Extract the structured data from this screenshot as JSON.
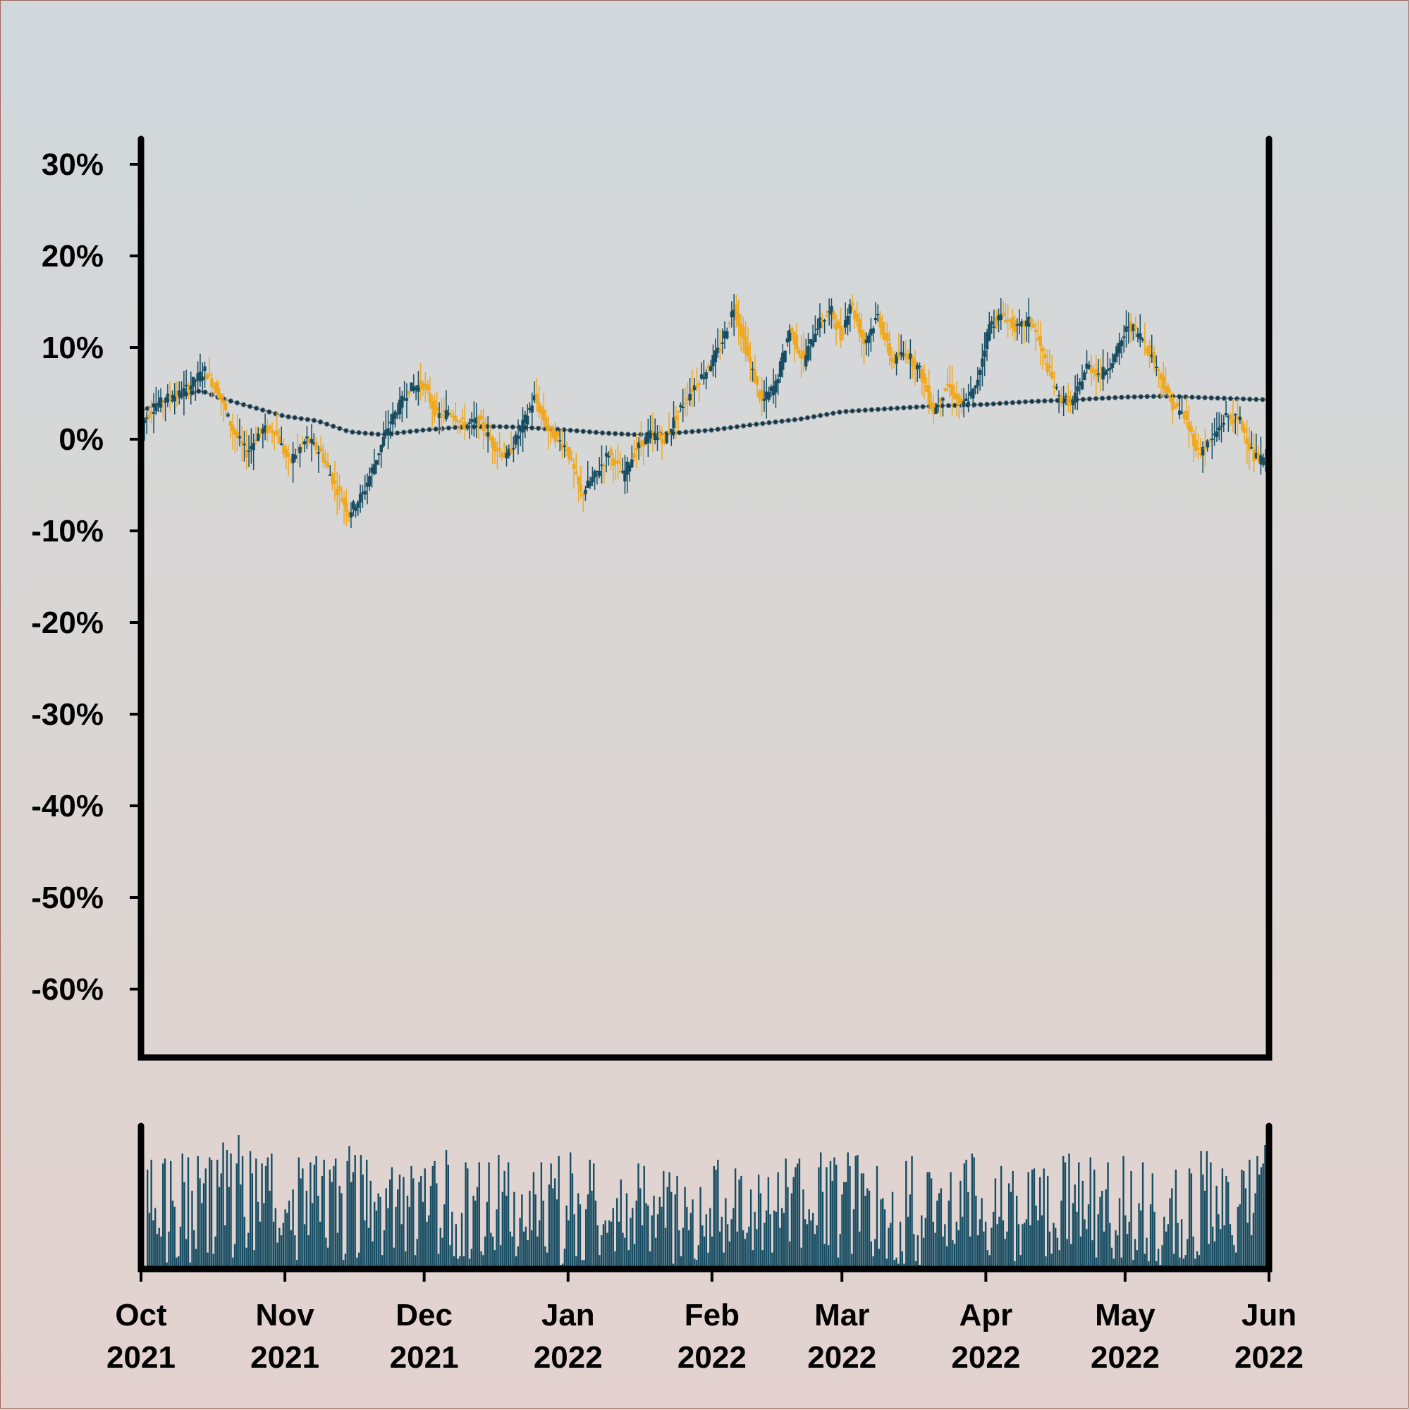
{
  "colors": {
    "up": "#174d63",
    "down": "#f0a81e",
    "ma": "#1b3442",
    "volume": "#174d63",
    "axis": "#000000"
  },
  "chart_data": {
    "type": "candlestick",
    "title": "",
    "xlabel": "",
    "ylabel": "",
    "y_unit": "percent",
    "ylim": [
      -66,
      32
    ],
    "yticks": [
      30,
      20,
      10,
      0,
      -10,
      -20,
      -30,
      -40,
      -50,
      -60
    ],
    "ytick_labels": [
      "30%",
      "20%",
      "10%",
      "0%",
      "-10%",
      "-20%",
      "-30%",
      "-40%",
      "-50%",
      "-60%"
    ],
    "x_range": [
      "2021-10-01",
      "2022-06-01"
    ],
    "xticks": [
      {
        "date": "2021-10-01",
        "month": "Oct",
        "year": "2021"
      },
      {
        "date": "2021-11-01",
        "month": "Nov",
        "year": "2021"
      },
      {
        "date": "2021-12-01",
        "month": "Dec",
        "year": "2021"
      },
      {
        "date": "2022-01-01",
        "month": "Jan",
        "year": "2022"
      },
      {
        "date": "2022-02-01",
        "month": "Feb",
        "year": "2022"
      },
      {
        "date": "2022-03-01",
        "month": "Mar",
        "year": "2022"
      },
      {
        "date": "2022-04-01",
        "month": "Apr",
        "year": "2022"
      },
      {
        "date": "2022-05-01",
        "month": "May",
        "year": "2022"
      },
      {
        "date": "2022-06-01",
        "month": "Jun",
        "year": "2022"
      }
    ],
    "price_anchors": [
      [
        "2021-10-01",
        1.5
      ],
      [
        "2021-10-04",
        3.5
      ],
      [
        "2021-10-07",
        4.5
      ],
      [
        "2021-10-10",
        5.0
      ],
      [
        "2021-10-12",
        6.0
      ],
      [
        "2021-10-15",
        7.5
      ],
      [
        "2021-10-18",
        5.0
      ],
      [
        "2021-10-21",
        1.0
      ],
      [
        "2021-10-24",
        -1.5
      ],
      [
        "2021-10-27",
        1.0
      ],
      [
        "2021-10-30",
        1.0
      ],
      [
        "2021-11-02",
        -2.5
      ],
      [
        "2021-11-06",
        0.0
      ],
      [
        "2021-11-09",
        -1.5
      ],
      [
        "2021-11-12",
        -5.0
      ],
      [
        "2021-11-15",
        -8.0
      ],
      [
        "2021-11-18",
        -6.0
      ],
      [
        "2021-11-21",
        -2.0
      ],
      [
        "2021-11-24",
        2.0
      ],
      [
        "2021-11-28",
        5.5
      ],
      [
        "2021-12-01",
        6.0
      ],
      [
        "2021-12-04",
        2.5
      ],
      [
        "2021-12-07",
        3.0
      ],
      [
        "2021-12-10",
        1.5
      ],
      [
        "2021-12-13",
        2.0
      ],
      [
        "2021-12-16",
        -0.5
      ],
      [
        "2021-12-19",
        -2.0
      ],
      [
        "2021-12-22",
        1.0
      ],
      [
        "2021-12-25",
        4.5
      ],
      [
        "2021-12-28",
        1.0
      ],
      [
        "2022-01-01",
        -1.0
      ],
      [
        "2022-01-04",
        -6.0
      ],
      [
        "2022-01-07",
        -4.0
      ],
      [
        "2022-01-10",
        -1.5
      ],
      [
        "2022-01-13",
        -4.0
      ],
      [
        "2022-01-16",
        -1.0
      ],
      [
        "2022-01-19",
        0.5
      ],
      [
        "2022-01-22",
        0.0
      ],
      [
        "2022-01-25",
        3.0
      ],
      [
        "2022-01-28",
        5.5
      ],
      [
        "2022-01-31",
        7.5
      ],
      [
        "2022-02-03",
        10.0
      ],
      [
        "2022-02-06",
        14.5
      ],
      [
        "2022-02-09",
        9.0
      ],
      [
        "2022-02-12",
        4.0
      ],
      [
        "2022-02-15",
        6.0
      ],
      [
        "2022-02-18",
        12.0
      ],
      [
        "2022-02-21",
        8.5
      ],
      [
        "2022-02-24",
        12.5
      ],
      [
        "2022-02-27",
        14.0
      ],
      [
        "2022-03-01",
        11.0
      ],
      [
        "2022-03-03",
        15.0
      ],
      [
        "2022-03-06",
        10.5
      ],
      [
        "2022-03-09",
        13.5
      ],
      [
        "2022-03-12",
        8.5
      ],
      [
        "2022-03-15",
        9.5
      ],
      [
        "2022-03-18",
        7.5
      ],
      [
        "2022-03-21",
        3.0
      ],
      [
        "2022-03-24",
        6.0
      ],
      [
        "2022-03-27",
        3.5
      ],
      [
        "2022-03-30",
        5.5
      ],
      [
        "2022-04-02",
        12.5
      ],
      [
        "2022-04-05",
        13.5
      ],
      [
        "2022-04-08",
        12.0
      ],
      [
        "2022-04-11",
        13.0
      ],
      [
        "2022-04-14",
        8.5
      ],
      [
        "2022-04-17",
        4.5
      ],
      [
        "2022-04-20",
        4.0
      ],
      [
        "2022-04-23",
        8.0
      ],
      [
        "2022-04-26",
        7.0
      ],
      [
        "2022-04-29",
        9.0
      ],
      [
        "2022-05-02",
        12.5
      ],
      [
        "2022-05-05",
        11.0
      ],
      [
        "2022-05-08",
        8.0
      ],
      [
        "2022-05-11",
        4.0
      ],
      [
        "2022-05-14",
        2.5
      ],
      [
        "2022-05-17",
        -1.5
      ],
      [
        "2022-05-20",
        0.0
      ],
      [
        "2022-05-23",
        2.5
      ],
      [
        "2022-05-26",
        2.0
      ],
      [
        "2022-05-29",
        -2.0
      ],
      [
        "2022-06-01",
        -2.5
      ]
    ],
    "moving_average": [
      [
        "2021-10-01",
        3.0
      ],
      [
        "2021-10-07",
        4.5
      ],
      [
        "2021-10-14",
        5.3
      ],
      [
        "2021-10-18",
        4.5
      ],
      [
        "2021-10-25",
        3.5
      ],
      [
        "2021-11-01",
        2.5
      ],
      [
        "2021-11-08",
        2.0
      ],
      [
        "2021-11-15",
        0.8
      ],
      [
        "2021-11-22",
        0.5
      ],
      [
        "2021-12-01",
        1.0
      ],
      [
        "2021-12-08",
        1.3
      ],
      [
        "2021-12-15",
        1.4
      ],
      [
        "2021-12-22",
        1.3
      ],
      [
        "2022-01-01",
        1.0
      ],
      [
        "2022-01-08",
        0.7
      ],
      [
        "2022-01-15",
        0.5
      ],
      [
        "2022-01-22",
        0.6
      ],
      [
        "2022-02-01",
        1.0
      ],
      [
        "2022-02-10",
        1.6
      ],
      [
        "2022-02-20",
        2.2
      ],
      [
        "2022-03-01",
        3.0
      ],
      [
        "2022-03-10",
        3.3
      ],
      [
        "2022-03-20",
        3.6
      ],
      [
        "2022-04-01",
        3.8
      ],
      [
        "2022-04-10",
        4.1
      ],
      [
        "2022-04-20",
        4.3
      ],
      [
        "2022-05-01",
        4.6
      ],
      [
        "2022-05-10",
        4.7
      ],
      [
        "2022-05-20",
        4.5
      ],
      [
        "2022-06-01",
        4.3
      ]
    ],
    "volume": {
      "unit": "relative (0-1)",
      "values": [
        0.78,
        0.43,
        0.86,
        0.37,
        0.47,
        0.26,
        0.31,
        0.24,
        0.83,
        0.87,
        0.03,
        0.28,
        0.85,
        0.53,
        0.48,
        0.07,
        0.08,
        0.32,
        0.91,
        0.68,
        0.22,
        0.88,
        0.03,
        0.61,
        0.29,
        0.14,
        0.89,
        0.71,
        0.51,
        0.67,
        0.79,
        0.11,
        0.88,
        0.86,
        0.1,
        0.24,
        0.86,
        0.64,
        0.75,
        1.0,
        0.33,
        0.94,
        0.64,
        0.91,
        0.07,
        0.18,
        0.83,
        1.06,
        0.66,
        0.89,
        0.4,
        0.15,
        0.27,
        0.93,
        0.75,
        0.13,
        0.87,
        0.52,
        0.36,
        0.83,
        0.51,
        0.81,
        0.88,
        0.61,
        0.91,
        0.36,
        0.47,
        0.19,
        0.31,
        0.25,
        0.35,
        0.46,
        0.43,
        0.53,
        0.29,
        0.62,
        0.25,
        0.05,
        0.88,
        0.71,
        0.79,
        0.34,
        0.61,
        0.25,
        0.84,
        0.51,
        0.82,
        0.89,
        0.57,
        0.36,
        0.73,
        0.86,
        0.23,
        0.15,
        0.78,
        0.68,
        0.81,
        0.87,
        0.27,
        0.65,
        0.59,
        0.05,
        0.1,
        0.85,
        0.97,
        0.68,
        0.76,
        0.9,
        0.07,
        0.11,
        0.9,
        0.74,
        0.37,
        0.86,
        0.31,
        0.69,
        0.2,
        0.52,
        0.45,
        0.59,
        0.56,
        0.09,
        0.29,
        0.63,
        0.47,
        0.7,
        0.8,
        0.15,
        0.48,
        0.62,
        0.74,
        0.34,
        0.72,
        0.12,
        0.57,
        0.48,
        0.81,
        0.71,
        0.09,
        0.22,
        0.68,
        0.73,
        0.52,
        0.79,
        0.36,
        0.41,
        0.65,
        0.81,
        0.85,
        0.67,
        0.1,
        0.31,
        0.23,
        0.5,
        0.94,
        0.82,
        0.17,
        0.44,
        0.08,
        0.34,
        0.06,
        0.08,
        0.43,
        0.08,
        0.84,
        0.79,
        0.06,
        0.14,
        0.57,
        0.53,
        0.64,
        0.84,
        0.12,
        0.09,
        0.24,
        0.52,
        0.84,
        0.27,
        0.24,
        0.13,
        0.46,
        0.9,
        0.17,
        0.6,
        0.77,
        0.57,
        0.84,
        0.28,
        0.24,
        0.6,
        0.08,
        0.16,
        0.39,
        0.58,
        0.28,
        0.32,
        0.21,
        0.61,
        0.29,
        0.76,
        0.58,
        0.24,
        0.37,
        0.84,
        0.53,
        0.16,
        0.11,
        0.66,
        0.83,
        0.63,
        0.71,
        0.54,
        0.89,
        0.01,
        0.02,
        0.14,
        0.49,
        0.37,
        0.92,
        0.75,
        0.42,
        0.08,
        0.59,
        0.5,
        0.05,
        0.05,
        0.46,
        0.58,
        0.86,
        0.61,
        0.83,
        0.53,
        0.33,
        0.09,
        0.25,
        0.34,
        0.37,
        0.27,
        0.37,
        0.36,
        0.47,
        0.12,
        0.55,
        0.36,
        0.7,
        0.27,
        0.23,
        0.59,
        0.13,
        0.39,
        0.47,
        0.18,
        0.53,
        0.83,
        0.63,
        0.33,
        0.81,
        0.51,
        0.49,
        0.12,
        0.41,
        0.57,
        0.23,
        0.42,
        0.56,
        0.48,
        0.77,
        0.31,
        0.64,
        0.76,
        0.6,
        0.02,
        0.58,
        0.73,
        0.29,
        0.08,
        0.31,
        0.64,
        0.48,
        0.29,
        0.43,
        0.54,
        0.06,
        0.05,
        0.17,
        0.64,
        0.33,
        0.24,
        0.42,
        0.11,
        0.47,
        0.24,
        0.81,
        0.78,
        0.86,
        0.28,
        0.4,
        0.11,
        0.55,
        0.34,
        0.2,
        0.38,
        0.47,
        0.79,
        0.28,
        0.7,
        0.73,
        0.29,
        0.22,
        0.27,
        0.32,
        0.62,
        0.13,
        0.44,
        0.3,
        0.74,
        0.59,
        0.13,
        0.35,
        0.45,
        0.72,
        0.42,
        0.11,
        0.45,
        0.44,
        0.76,
        0.31,
        0.47,
        0.43,
        0.87,
        0.64,
        0.2,
        0.59,
        0.72,
        0.8,
        0.83,
        0.87,
        0.15,
        0.62,
        0.38,
        0.34,
        0.46,
        0.37,
        0.43,
        0.26,
        0.33,
        0.8,
        0.92,
        0.6,
        0.18,
        0.8,
        0.17,
        0.85,
        0.69,
        0.88,
        0.82,
        0.07,
        0.26,
        0.58,
        0.68,
        0.68,
        0.92,
        0.81,
        0.1,
        0.46,
        0.89,
        0.9,
        0.28,
        0.75,
        0.75,
        0.57,
        0.63,
        0.61,
        0.2,
        0.08,
        0.22,
        0.81,
        0.14,
        0.54,
        0.55,
        0.46,
        0.06,
        0.31,
        0.35,
        0.6,
        0.05,
        0.07,
        0.02,
        0.36,
        0.12,
        0.02,
        0.85,
        0.4,
        0.58,
        0.89,
        0.26,
        0.04,
        0.25,
        0.01,
        0.41,
        0.23,
        0.39,
        0.76,
        0.76,
        0.71,
        0.36,
        0.27,
        0.53,
        0.59,
        0.63,
        0.24,
        0.34,
        0.16,
        0.53,
        0.76,
        0.21,
        0.18,
        0.36,
        0.29,
        0.69,
        0.4,
        0.83,
        0.86,
        0.6,
        0.24,
        0.91,
        0.88,
        0.57,
        0.25,
        0.38,
        0.55,
        0.28,
        0.36,
        0.13,
        0.09,
        0.31,
        0.44,
        0.71,
        0.34,
        0.4,
        0.81,
        0.37,
        0.22,
        0.28,
        0.67,
        0.6,
        0.77,
        0.04,
        0.57,
        0.34,
        0.09,
        0.34,
        0.35,
        0.38,
        0.76,
        0.33,
        0.78,
        0.79,
        0.49,
        0.37,
        0.72,
        0.41,
        0.79,
        0.08,
        0.73,
        0.28,
        0.1,
        0.35,
        0.31,
        0.23,
        0.13,
        0.53,
        0.89,
        0.84,
        0.22,
        0.91,
        0.18,
        0.51,
        0.66,
        0.44,
        0.84,
        0.24,
        0.69,
        0.38,
        0.3,
        0.5,
        0.88,
        0.21,
        0.78,
        0.07,
        0.42,
        0.56,
        0.61,
        0.28,
        0.62,
        0.84,
        0.35,
        0.15,
        0.06,
        0.29,
        0.25,
        0.55,
        0.07,
        0.89,
        0.41,
        0.26,
        0.36,
        0.77,
        0.05,
        0.22,
        0.13,
        0.51,
        0.45,
        0.84,
        0.1,
        0.23,
        0.04,
        0.5,
        0.75,
        0.44,
        0.04,
        0.14,
        0.01,
        0.17,
        0.4,
        0.28,
        0.34,
        0.55,
        0.63,
        0.1,
        0.78,
        0.35,
        0.07,
        0.38,
        0.06,
        0.09,
        0.22,
        0.79,
        0.75,
        0.24,
        0.06,
        0.12,
        0.09,
        0.93,
        0.74,
        0.61,
        0.93,
        0.18,
        0.84,
        0.32,
        0.2,
        0.65,
        0.42,
        0.3,
        0.79,
        0.33,
        0.73,
        0.68,
        0.34,
        0.25,
        0.17,
        0.11,
        0.48,
        0.5,
        0.78,
        0.77,
        0.63,
        0.35,
        0.86,
        0.25,
        0.43,
        0.59,
        0.89,
        0.74,
        0.8,
        0.83,
        0.98
      ]
    }
  }
}
